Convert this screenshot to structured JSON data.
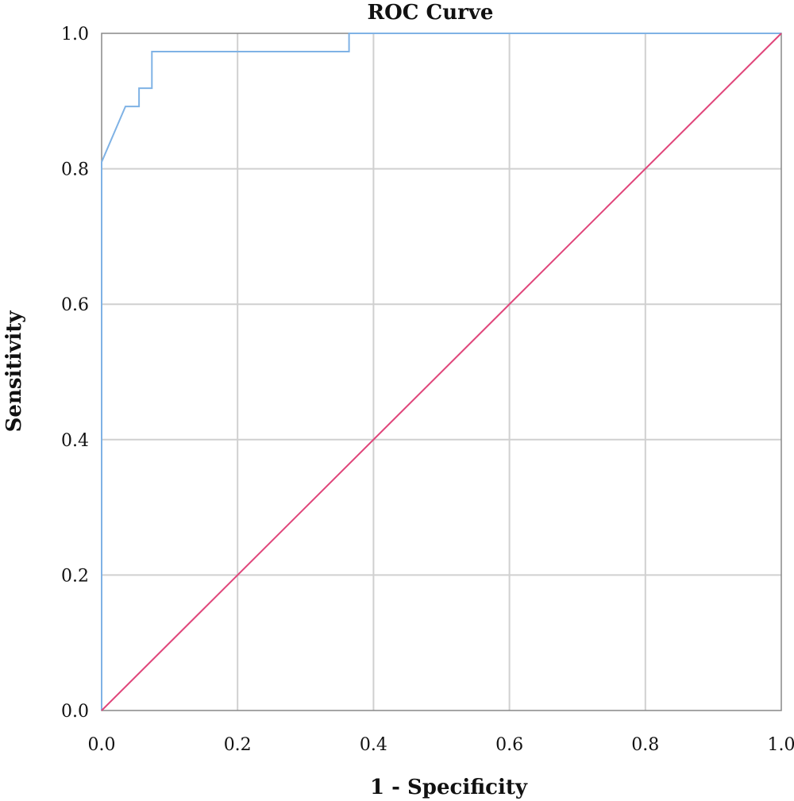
{
  "chart_data": {
    "type": "line",
    "title": "ROC Curve",
    "xlabel": "1 - Specificity",
    "ylabel": "Sensitivity",
    "xlim": [
      0,
      1
    ],
    "ylim": [
      0,
      1
    ],
    "x_ticks": [
      "0.0",
      "0.2",
      "0.4",
      "0.6",
      "0.8",
      "1.0"
    ],
    "y_ticks": [
      "0.0",
      "0.2",
      "0.4",
      "0.6",
      "0.8",
      "1.0"
    ],
    "grid": true,
    "legend": "none",
    "series": [
      {
        "color": "#7fb2e5",
        "points": [
          [
            0.0,
            0.0
          ],
          [
            0.0,
            0.81
          ],
          [
            0.035,
            0.892
          ],
          [
            0.055,
            0.892
          ],
          [
            0.055,
            0.919
          ],
          [
            0.074,
            0.919
          ],
          [
            0.074,
            0.973
          ],
          [
            0.364,
            0.973
          ],
          [
            0.364,
            1.0
          ],
          [
            1.0,
            1.0
          ]
        ]
      },
      {
        "color": "#e0457a",
        "points": [
          [
            0.0,
            0.0
          ],
          [
            1.0,
            1.0
          ]
        ]
      }
    ]
  }
}
